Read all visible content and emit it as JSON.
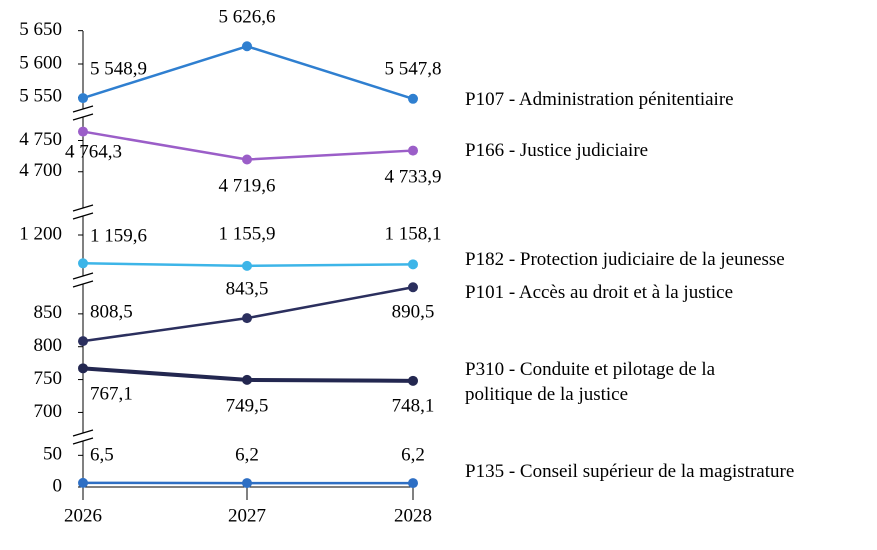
{
  "chart_data": {
    "type": "line",
    "categories": [
      "2026",
      "2027",
      "2028"
    ],
    "axis_segments": [
      {
        "ylim": [
          5540,
          5660
        ],
        "yticks": [
          {
            "value": 5550,
            "label": "5 550"
          },
          {
            "value": 5600,
            "label": "5 600"
          },
          {
            "value": 5650,
            "label": "5 650"
          }
        ]
      },
      {
        "ylim": [
          4690,
          4770
        ],
        "yticks": [
          {
            "value": 4700,
            "label": "4 700"
          },
          {
            "value": 4750,
            "label": "4 750"
          }
        ]
      },
      {
        "ylim": [
          1140,
          1210
        ],
        "yticks": [
          {
            "value": 1200,
            "label": "1 200"
          }
        ]
      },
      {
        "ylim": [
          690,
          900
        ],
        "yticks": [
          700,
          750,
          800,
          850
        ]
      },
      {
        "ylim": [
          0,
          60
        ],
        "yticks": [
          0,
          50
        ]
      }
    ],
    "series": [
      {
        "name": "P107 - Administration pénitentiaire",
        "color": "#2f7fd0",
        "values": [
          5548.9,
          5626.6,
          5547.8
        ],
        "value_labels": [
          "5 548,9",
          "5 626,6",
          "5 547,8"
        ]
      },
      {
        "name": "P166 - Justice judiciaire",
        "color": "#9b5ec8",
        "values": [
          4764.3,
          4719.6,
          4733.9
        ],
        "value_labels": [
          "4 764,3",
          "4 719,6",
          "4 733,9"
        ]
      },
      {
        "name": "P182 - Protection judiciaire de la jeunesse",
        "color": "#3db5e8",
        "values": [
          1159.6,
          1155.9,
          1158.1
        ],
        "value_labels": [
          "1 159,6",
          "1 155,9",
          "1 158,1"
        ]
      },
      {
        "name": "P101 - Accès au droit et à la justice",
        "color": "#2b2f5e",
        "values": [
          808.5,
          843.5,
          890.5
        ],
        "value_labels": [
          "808,5",
          "843,5",
          "890,5"
        ]
      },
      {
        "name": "P310 - Conduite et pilotage de la politique de la justice",
        "color": "#232750",
        "values": [
          767.1,
          749.5,
          748.1
        ],
        "value_labels": [
          "767,1",
          "749,5",
          "748,1"
        ]
      },
      {
        "name": "P135 - Conseil supérieur de la magistrature",
        "color": "#2e6fc4",
        "values": [
          6.5,
          6.2,
          6.2
        ],
        "value_labels": [
          "6,5",
          "6,2",
          "6,2"
        ]
      }
    ]
  }
}
